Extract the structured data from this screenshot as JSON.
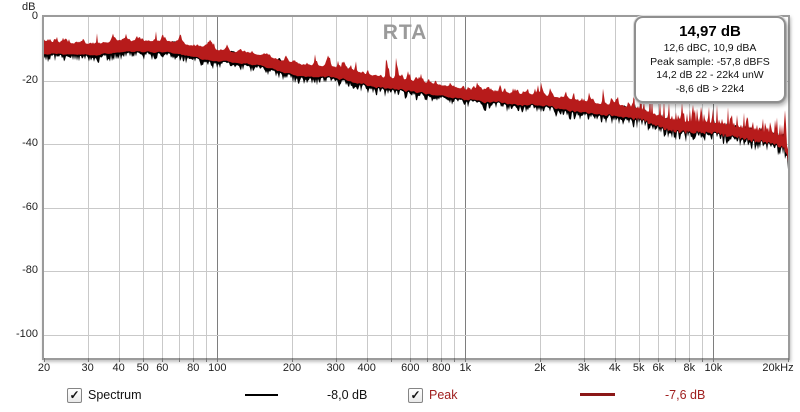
{
  "title": "RTA",
  "colors": {
    "spectrum": "#000000",
    "peak": "#b71b1b",
    "peak_legend_text": "#a02020",
    "peak_swatch": "#8b1717",
    "grid_minor": "#c9c9c9",
    "grid_major": "#7e7e7e",
    "plot_border": "#9b9b9b",
    "title_text": "#9a9a9a"
  },
  "y_axis": {
    "unit": "dB",
    "ticks": [
      0,
      -20,
      -40,
      -60,
      -80,
      -100
    ],
    "max": 0,
    "min": -107.4
  },
  "x_axis": {
    "unit": "Hz",
    "scale": "log",
    "min_hz": 20,
    "max_hz": 20000,
    "labeled_ticks": [
      {
        "f": 20,
        "label": "20"
      },
      {
        "f": 30,
        "label": "30"
      },
      {
        "f": 40,
        "label": "40"
      },
      {
        "f": 50,
        "label": "50"
      },
      {
        "f": 60,
        "label": "60"
      },
      {
        "f": 80,
        "label": "80"
      },
      {
        "f": 100,
        "label": "100"
      },
      {
        "f": 200,
        "label": "200"
      },
      {
        "f": 300,
        "label": "300"
      },
      {
        "f": 400,
        "label": "400"
      },
      {
        "f": 600,
        "label": "600"
      },
      {
        "f": 800,
        "label": "800"
      },
      {
        "f": 1000,
        "label": "1k"
      },
      {
        "f": 2000,
        "label": "2k"
      },
      {
        "f": 3000,
        "label": "3k"
      },
      {
        "f": 4000,
        "label": "4k"
      },
      {
        "f": 5000,
        "label": "5k"
      },
      {
        "f": 6000,
        "label": "6k"
      },
      {
        "f": 8000,
        "label": "8k"
      },
      {
        "f": 10000,
        "label": "10k"
      },
      {
        "f": 20000,
        "label": "20kHz"
      }
    ],
    "grid_freqs": [
      30,
      40,
      50,
      60,
      70,
      80,
      90,
      100,
      200,
      300,
      400,
      500,
      600,
      700,
      800,
      900,
      1000,
      2000,
      3000,
      4000,
      5000,
      6000,
      7000,
      8000,
      9000,
      10000
    ],
    "major_freqs": [
      100,
      1000,
      10000
    ],
    "tick_mark_freqs": [
      20,
      30,
      40,
      50,
      60,
      70,
      80,
      90,
      100,
      200,
      300,
      400,
      500,
      600,
      700,
      800,
      900,
      1000,
      2000,
      3000,
      4000,
      5000,
      6000,
      7000,
      8000,
      9000,
      10000,
      20000
    ]
  },
  "overlay": {
    "title": "14,97 dB",
    "lines": [
      "12,6 dBC, 10,9 dBA",
      "Peak sample: -57,8 dBFS",
      "14,2 dB 22 - 22k4 unW",
      "-8,6 dB > 22k4"
    ]
  },
  "legend": {
    "spectrum": {
      "label": "Spectrum",
      "value": "-8,0 dB",
      "checked": true
    },
    "peak": {
      "label": "Peak",
      "value": "-7,6 dB",
      "checked": true
    }
  },
  "chart_data": {
    "type": "line",
    "title": "RTA",
    "xlabel": "Hz",
    "ylabel": "dB",
    "x_scale": "log",
    "x_range_hz": [
      20,
      20000
    ],
    "ylim": [
      -107.4,
      0
    ],
    "grid": true,
    "legend_position": "bottom",
    "series": [
      {
        "name": "Spectrum",
        "color": "#000000",
        "current_level": "-8,0 dB",
        "trend_points_hz_db": [
          [
            20,
            -8.5
          ],
          [
            30,
            -9
          ],
          [
            50,
            -10
          ],
          [
            70,
            -11
          ],
          [
            100,
            -12.2
          ],
          [
            150,
            -13.8
          ],
          [
            200,
            -15.2
          ],
          [
            300,
            -17.5
          ],
          [
            500,
            -20
          ],
          [
            700,
            -21.8
          ],
          [
            1000,
            -23.5
          ],
          [
            1500,
            -25.3
          ],
          [
            2000,
            -27
          ],
          [
            3000,
            -29
          ],
          [
            5000,
            -31.3
          ],
          [
            7000,
            -33.2
          ],
          [
            10000,
            -35.3
          ],
          [
            14000,
            -36.8
          ],
          [
            18000,
            -38.3
          ],
          [
            19400,
            -39.5
          ],
          [
            20000,
            -43
          ]
        ]
      },
      {
        "name": "Peak",
        "color": "#b71b1b",
        "current_level": "-7,6 dB",
        "relation": "spectrum trend plus 1.5 to 6 dB of spiky peak-hold noise"
      }
    ],
    "noise": {
      "red_top_base_db": 1.4,
      "red_spike_max_db": 6.5,
      "red_bottom_db": 1.3,
      "black_top_db": 0.9,
      "black_below_red_db": 2.2,
      "slow_wander_db": 1.6
    }
  }
}
